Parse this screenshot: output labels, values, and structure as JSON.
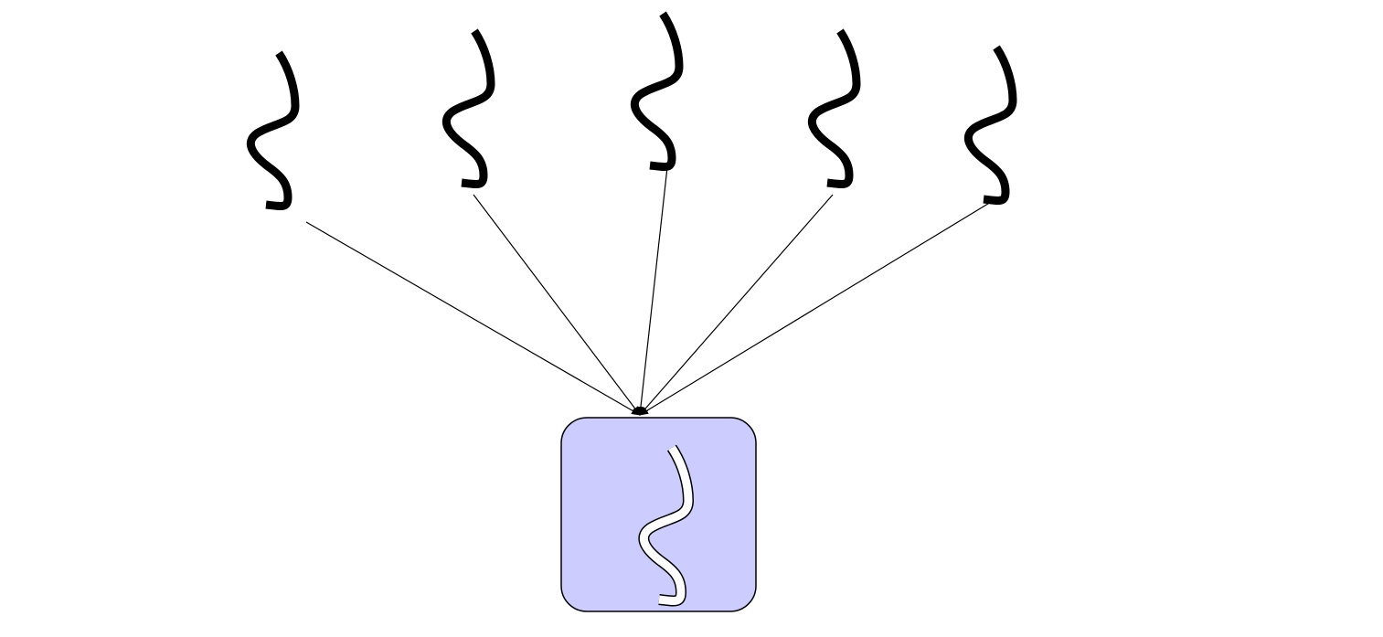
{
  "diagram": {
    "type": "many-to-one",
    "source_count": 5,
    "source_shape": "squiggle-stroke",
    "target_shape": "rounded-square-with-outlined-squiggle",
    "connector": "arrow",
    "colors": {
      "background": "#ffffff",
      "stroke": "#000000",
      "target_fill": "#ccccff",
      "target_squiggle_fill": "#ffffff"
    }
  }
}
